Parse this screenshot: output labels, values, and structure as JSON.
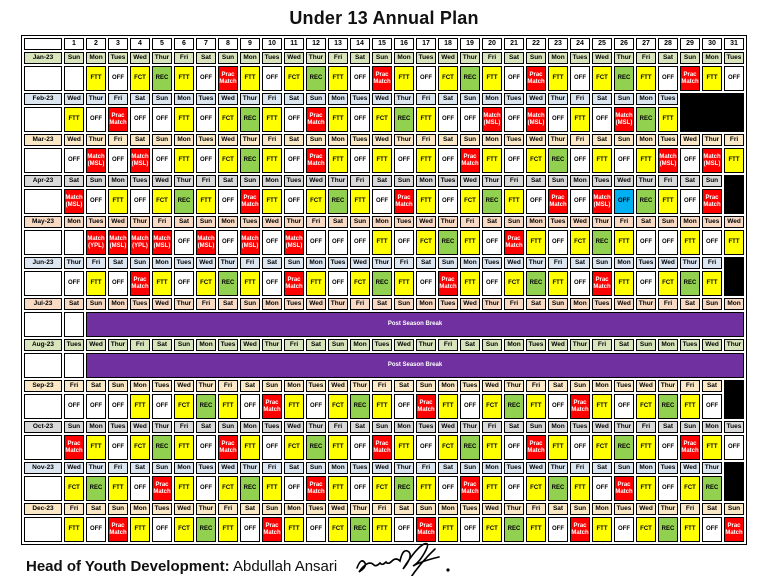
{
  "title": "Under 13 Annual Plan",
  "footer": {
    "role_label": "Head of Youth Development:",
    "name": " Abdullah Ansari"
  },
  "table": {
    "day_numbers": [
      "1",
      "2",
      "3",
      "4",
      "5",
      "6",
      "7",
      "8",
      "9",
      "10",
      "11",
      "12",
      "13",
      "14",
      "15",
      "16",
      "17",
      "18",
      "19",
      "20",
      "21",
      "22",
      "23",
      "24",
      "25",
      "26",
      "27",
      "28",
      "29",
      "30",
      "31"
    ],
    "break_label": "Post Season Break",
    "break_bg": "#7030A0",
    "filler_bg": "#000000",
    "legend": {
      "FTT": {
        "label": "FTT",
        "bg": "#FFFF00",
        "fg": "#000000"
      },
      "FCT": {
        "label": "FCT",
        "bg": "#FFFF00",
        "fg": "#000000"
      },
      "OFF": {
        "label": "OFF",
        "bg": "#FFFFFF",
        "fg": "#000000"
      },
      "OB": {
        "label": "OFF",
        "bg": "#00B0F0",
        "fg": "#000000"
      },
      "REC": {
        "label": "REC",
        "bg": "#92D050",
        "fg": "#000000"
      },
      "PM": {
        "label": "Prac Match",
        "bg": "#FF0000",
        "fg": "#FFFFFF"
      },
      "MSL": {
        "label": "Match (MSL)",
        "bg": "#FF0000",
        "fg": "#FFFFFF"
      },
      "YPL": {
        "label": "Match (YPL)",
        "bg": "#FF0000",
        "fg": "#FFFFFF"
      },
      "B": {
        "label": "",
        "bg": "#FFFFFF",
        "fg": "#000000"
      }
    },
    "months": [
      {
        "label": "Jan-23",
        "tint": "#D8E4BC",
        "days": [
          "Sun",
          "Mon",
          "Tues",
          "Wed",
          "Thur",
          "Fri",
          "Sat",
          "Sun",
          "Mon",
          "Tues",
          "Wed",
          "Thur",
          "Fri",
          "Sat",
          "Sun",
          "Mon",
          "Tues",
          "Wed",
          "Thur",
          "Fri",
          "Sat",
          "Sun",
          "Mon",
          "Tues",
          "Wed",
          "Thur",
          "Fri",
          "Sat",
          "Sun",
          "Mon",
          "Tues"
        ],
        "acts": [
          "B",
          "FTT",
          "OFF",
          "FCT",
          "REC",
          "FTT",
          "OFF",
          "PM",
          "FTT",
          "OFF",
          "FCT",
          "REC",
          "FTT",
          "OFF",
          "PM",
          "FTT",
          "OFF",
          "FCT",
          "REC",
          "FTT",
          "OFF",
          "PM",
          "FTT",
          "OFF",
          "FCT",
          "REC",
          "FTT",
          "OFF",
          "PM",
          "FTT",
          "OFF"
        ]
      },
      {
        "label": "Feb-23",
        "tint": "#DCE6F1",
        "days": [
          "Wed",
          "Thur",
          "Fri",
          "Sat",
          "Sun",
          "Mon",
          "Tues",
          "Wed",
          "Thur",
          "Fri",
          "Sat",
          "Sun",
          "Mon",
          "Tues",
          "Wed",
          "Thur",
          "Fri",
          "Sat",
          "Sun",
          "Mon",
          "Tues",
          "Wed",
          "Thur",
          "Fri",
          "Sat",
          "Sun",
          "Mon",
          "Tues"
        ],
        "acts": [
          "FTT",
          "OFF",
          "PM",
          "OFF",
          "OFF",
          "FTT",
          "OFF",
          "FCT",
          "REC",
          "FTT",
          "OFF",
          "PM",
          "FTT",
          "OFF",
          "FCT",
          "REC",
          "FTT",
          "OFF",
          "OFF",
          "MSL",
          "OFF",
          "MSL",
          "OFF",
          "FTT",
          "OFF",
          "MSL",
          "REC",
          "FTT"
        ]
      },
      {
        "label": "Mar-23",
        "tint": "#FAE8C6",
        "days": [
          "Wed",
          "Thur",
          "Fri",
          "Sat",
          "Sun",
          "Mon",
          "Tues",
          "Wed",
          "Thur",
          "Fri",
          "Sat",
          "Sun",
          "Mon",
          "Tues",
          "Wed",
          "Thur",
          "Fri",
          "Sat",
          "Sun",
          "Mon",
          "Tues",
          "Wed",
          "Thur",
          "Fri",
          "Sat",
          "Sun",
          "Mon",
          "Tues",
          "Wed",
          "Thur",
          "Fri"
        ],
        "acts": [
          "OFF",
          "MSL",
          "OFF",
          "MSL",
          "OFF",
          "FTT",
          "OFF",
          "FCT",
          "REC",
          "FTT",
          "OFF",
          "PM",
          "FTT",
          "OFF",
          "FTT",
          "OFF",
          "FTT",
          "OFF",
          "PM",
          "FTT",
          "OFF",
          "FCT",
          "REC",
          "OFF",
          "FTT",
          "OFF",
          "FTT",
          "MSL",
          "OFF",
          "MSL",
          "FTT"
        ]
      },
      {
        "label": "Apr-23",
        "tint": "#D9D9D9",
        "days": [
          "Sat",
          "Sun",
          "Mon",
          "Tues",
          "Wed",
          "Thur",
          "Fri",
          "Sat",
          "Sun",
          "Mon",
          "Tues",
          "Wed",
          "Thur",
          "Fri",
          "Sat",
          "Sun",
          "Mon",
          "Tues",
          "Wed",
          "Thur",
          "Fri",
          "Sat",
          "Sun",
          "Mon",
          "Tues",
          "Wed",
          "Thur",
          "Fri",
          "Sat",
          "Sun"
        ],
        "acts": [
          "MSL",
          "OFF",
          "FTT",
          "OFF",
          "FCT",
          "REC",
          "FTT",
          "OFF",
          "PM",
          "FTT",
          "OFF",
          "FCT",
          "REC",
          "FTT",
          "OFF",
          "PM",
          "FTT",
          "OFF",
          "FCT",
          "REC",
          "FTT",
          "OFF",
          "PM",
          "OFF",
          "MSL",
          "OB",
          "REC",
          "FTT",
          "OFF",
          "PM"
        ]
      },
      {
        "label": "May-23",
        "tint": "#F8D9C4",
        "days": [
          "Mon",
          "Tues",
          "Wed",
          "Thur",
          "Fri",
          "Sat",
          "Sun",
          "Mon",
          "Tues",
          "Wed",
          "Thur",
          "Fri",
          "Sat",
          "Sun",
          "Mon",
          "Tues",
          "Wed",
          "Thur",
          "Fri",
          "Sat",
          "Sun",
          "Mon",
          "Tues",
          "Wed",
          "Thur",
          "Fri",
          "Sat",
          "Sun",
          "Mon",
          "Tues",
          "Wed"
        ],
        "acts": [
          "B",
          "YPL",
          "MSL",
          "YPL",
          "MSL",
          "OFF",
          "MSL",
          "OFF",
          "MSL",
          "OFF",
          "MSL",
          "OFF",
          "OFF",
          "OFF",
          "FTT",
          "OFF",
          "FCT",
          "REC",
          "FTT",
          "OFF",
          "PM",
          "FTT",
          "OFF",
          "FCT",
          "REC",
          "FTT",
          "OFF",
          "OFF",
          "FTT",
          "OFF",
          "FTT"
        ]
      },
      {
        "label": "Jun-23",
        "tint": "#DCE6F1",
        "days": [
          "Thur",
          "Fri",
          "Sat",
          "Sun",
          "Mon",
          "Tues",
          "Wed",
          "Thur",
          "Fri",
          "Sat",
          "Sun",
          "Mon",
          "Tues",
          "Wed",
          "Thur",
          "Fri",
          "Sat",
          "Sun",
          "Mon",
          "Tues",
          "Wed",
          "Thur",
          "Fri",
          "Sat",
          "Sun",
          "Mon",
          "Tues",
          "Wed",
          "Thur",
          "Fri"
        ],
        "acts": [
          "OFF",
          "FTT",
          "OFF",
          "PM",
          "FTT",
          "OFF",
          "FCT",
          "REC",
          "FTT",
          "OFF",
          "PM",
          "FTT",
          "OFF",
          "FCT",
          "REC",
          "FTT",
          "OFF",
          "PM",
          "FTT",
          "OFF",
          "FCT",
          "REC",
          "FTT",
          "OFF",
          "PM",
          "FTT",
          "OFF",
          "FCT",
          "REC",
          "FTT"
        ]
      },
      {
        "label": "Jul-23",
        "tint": "#F8D9C4",
        "break": true,
        "days": [
          "Sat",
          "Sun",
          "Mon",
          "Tues",
          "Wed",
          "Thur",
          "Fri",
          "Sat",
          "Sun",
          "Mon",
          "Tues",
          "Wed",
          "Thur",
          "Fri",
          "Sat",
          "Sun",
          "Mon",
          "Tues",
          "Wed",
          "Thur",
          "Fri",
          "Sat",
          "Sun",
          "Mon",
          "Tues",
          "Wed",
          "Thur",
          "Fri",
          "Sat",
          "Sun",
          "Mon"
        ],
        "acts": [
          "B"
        ]
      },
      {
        "label": "Aug-23",
        "tint": "#D8E4BC",
        "break": true,
        "days": [
          "Tues",
          "Wed",
          "Thur",
          "Fri",
          "Sat",
          "Sun",
          "Mon",
          "Tues",
          "Wed",
          "Thur",
          "Fri",
          "Sat",
          "Sun",
          "Mon",
          "Tues",
          "Wed",
          "Thur",
          "Fri",
          "Sat",
          "Sun",
          "Mon",
          "Tues",
          "Wed",
          "Thur",
          "Fri",
          "Sat",
          "Sun",
          "Mon",
          "Tues",
          "Wed",
          "Thur"
        ],
        "acts": [
          "B"
        ]
      },
      {
        "label": "Sep-23",
        "tint": "#FAE8C6",
        "days": [
          "Fri",
          "Sat",
          "Sun",
          "Mon",
          "Tues",
          "Wed",
          "Thur",
          "Fri",
          "Sat",
          "Sun",
          "Mon",
          "Tues",
          "Wed",
          "Thur",
          "Fri",
          "Sat",
          "Sun",
          "Mon",
          "Tues",
          "Wed",
          "Thur",
          "Fri",
          "Sat",
          "Sun",
          "Mon",
          "Tues",
          "Wed",
          "Thur",
          "Fri",
          "Sat"
        ],
        "acts": [
          "OFF",
          "OFF",
          "OFF",
          "FTT",
          "OFF",
          "FCT",
          "REC",
          "FTT",
          "OFF",
          "PM",
          "FTT",
          "OFF",
          "FCT",
          "REC",
          "FTT",
          "OFF",
          "PM",
          "FTT",
          "OFF",
          "FCT",
          "REC",
          "FTT",
          "OFF",
          "PM",
          "FTT",
          "OFF",
          "FCT",
          "REC",
          "FTT",
          "OFF"
        ]
      },
      {
        "label": "Oct-23",
        "tint": "#D9D9D9",
        "days": [
          "Sun",
          "Mon",
          "Tues",
          "Wed",
          "Thur",
          "Fri",
          "Sat",
          "Sun",
          "Mon",
          "Tues",
          "Wed",
          "Thur",
          "Fri",
          "Sat",
          "Sun",
          "Mon",
          "Tues",
          "Wed",
          "Thur",
          "Fri",
          "Sat",
          "Sun",
          "Mon",
          "Tues",
          "Wed",
          "Thur",
          "Fri",
          "Sat",
          "Sun",
          "Mon",
          "Tues"
        ],
        "acts": [
          "PM",
          "FTT",
          "OFF",
          "FCT",
          "REC",
          "FTT",
          "OFF",
          "PM",
          "FTT",
          "OFF",
          "FCT",
          "REC",
          "FTT",
          "OFF",
          "PM",
          "FTT",
          "OFF",
          "FCT",
          "REC",
          "FTT",
          "OFF",
          "PM",
          "FTT",
          "OFF",
          "FCT",
          "REC",
          "FTT",
          "OFF",
          "PM",
          "FTT",
          "OFF"
        ]
      },
      {
        "label": "Nov-23",
        "tint": "#DCE6F1",
        "days": [
          "Wed",
          "Thur",
          "Fri",
          "Sat",
          "Sun",
          "Mon",
          "Tues",
          "Wed",
          "Thur",
          "Fri",
          "Sat",
          "Sun",
          "Mon",
          "Tues",
          "Wed",
          "Thur",
          "Fri",
          "Sat",
          "Sun",
          "Mon",
          "Tues",
          "Wed",
          "Thur",
          "Fri",
          "Sat",
          "Sun",
          "Mon",
          "Tues",
          "Wed",
          "Thur"
        ],
        "acts": [
          "FCT",
          "REC",
          "FTT",
          "OFF",
          "PM",
          "FTT",
          "OFF",
          "FCT",
          "REC",
          "FTT",
          "OFF",
          "PM",
          "FTT",
          "OFF",
          "FCT",
          "REC",
          "FTT",
          "OFF",
          "PM",
          "FTT",
          "OFF",
          "FCT",
          "REC",
          "FTT",
          "OFF",
          "PM",
          "FTT",
          "OFF",
          "FCT",
          "REC"
        ]
      },
      {
        "label": "Dec-23",
        "tint": "#FAE8C6",
        "days": [
          "Fri",
          "Sat",
          "Sun",
          "Mon",
          "Tues",
          "Wed",
          "Thur",
          "Fri",
          "Sat",
          "Sun",
          "Mon",
          "Tues",
          "Wed",
          "Thur",
          "Fri",
          "Sat",
          "Sun",
          "Mon",
          "Tues",
          "Wed",
          "Thur",
          "Fri",
          "Sat",
          "Sun",
          "Mon",
          "Tues",
          "Wed",
          "Thur",
          "Fri",
          "Sat",
          "Sun"
        ],
        "acts": [
          "FTT",
          "OFF",
          "PM",
          "FTT",
          "OFF",
          "FCT",
          "REC",
          "FTT",
          "OFF",
          "PM",
          "FTT",
          "OFF",
          "FCT",
          "REC",
          "FTT",
          "OFF",
          "PM",
          "FTT",
          "OFF",
          "FCT",
          "REC",
          "FTT",
          "OFF",
          "PM",
          "FTT",
          "OFF",
          "FCT",
          "REC",
          "FTT",
          "OFF",
          "PM"
        ]
      }
    ]
  }
}
